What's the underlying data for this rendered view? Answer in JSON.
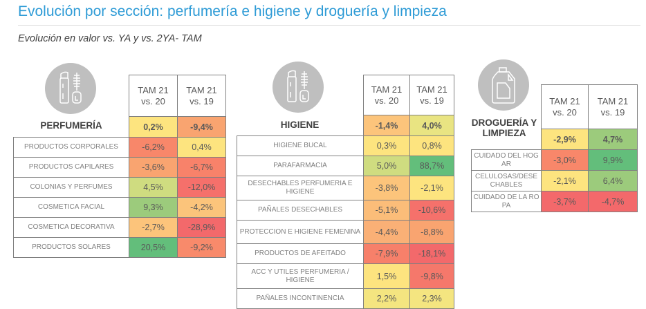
{
  "title": "Evolución por sección: perfumería e higiene y droguería y limpieza",
  "subtitle": "Evolución en valor vs. YA y vs. 2YA- TAM",
  "chart_data": [
    {
      "type": "table",
      "section": "PERFUMERÍA",
      "icon": "cosmetics-icon",
      "columns": [
        "TAM 21 vs. 20",
        "TAM 21 vs. 19"
      ],
      "total": [
        "0,2%",
        "-9,4%"
      ],
      "rows": [
        {
          "label": "PRODUCTOS CORPORALES",
          "values": [
            "-6,2%",
            "0,4%"
          ],
          "num": [
            -6.2,
            0.4
          ]
        },
        {
          "label": "PRODUCTOS CAPILARES",
          "values": [
            "-3,6%",
            "-6,7%"
          ],
          "num": [
            -3.6,
            -6.7
          ]
        },
        {
          "label": "COLONIAS Y PERFUMES",
          "values": [
            "4,5%",
            "-12,0%"
          ],
          "num": [
            4.5,
            -12.0
          ]
        },
        {
          "label": "COSMETICA FACIAL",
          "values": [
            "9,3%",
            "-4,2%"
          ],
          "num": [
            9.3,
            -4.2
          ]
        },
        {
          "label": "COSMETICA DECORATIVA",
          "values": [
            "-2,7%",
            "-28,9%"
          ],
          "num": [
            -2.7,
            -28.9
          ]
        },
        {
          "label": "PRODUCTOS SOLARES",
          "values": [
            "20,5%",
            "-9,2%"
          ],
          "num": [
            20.5,
            -9.2
          ]
        }
      ],
      "colors": {
        "total": [
          "#fde47f",
          "#f9a470"
        ],
        "rows": [
          [
            "#f8876a",
            "#fde47f"
          ],
          [
            "#f9a470",
            "#f8826a"
          ],
          [
            "#cfdc80",
            "#f5706b"
          ],
          [
            "#9ccb7c",
            "#fbc47b"
          ],
          [
            "#fcc47b",
            "#f3696b"
          ],
          [
            "#63be7b",
            "#f88a6b"
          ]
        ]
      }
    },
    {
      "type": "table",
      "section": "HIGIENE",
      "icon": "cosmetics-icon",
      "columns": [
        "TAM 21 vs. 20",
        "TAM 21 vs. 19"
      ],
      "total": [
        "-1,4%",
        "4,0%"
      ],
      "rows": [
        {
          "label": "HIGIENE BUCAL",
          "values": [
            "0,3%",
            "0,8%"
          ],
          "num": [
            0.3,
            0.8
          ]
        },
        {
          "label": "PARAFARMACIA",
          "values": [
            "5,0%",
            "88,7%"
          ],
          "num": [
            5.0,
            88.7
          ]
        },
        {
          "label": "DESECHABLES PERFUMERIA E HIGIENE",
          "values": [
            "-3,8%",
            "-2,1%"
          ],
          "num": [
            -3.8,
            -2.1
          ]
        },
        {
          "label": "PAÑALES DESECHABLES",
          "values": [
            "-5,1%",
            "-10,6%"
          ],
          "num": [
            -5.1,
            -10.6
          ]
        },
        {
          "label": "PROTECCION E HIGIENE FEMENINA",
          "values": [
            "-4,4%",
            "-8,8%"
          ],
          "num": [
            -4.4,
            -8.8
          ]
        },
        {
          "label": "PRODUCTOS DE AFEITADO",
          "values": [
            "-7,9%",
            "-18,1%"
          ],
          "num": [
            -7.9,
            -18.1
          ]
        },
        {
          "label": "ACC Y UTILES PERFUMERIA / HIGIENE",
          "values": [
            "1,5%",
            "-9,8%"
          ],
          "num": [
            1.5,
            -9.8
          ]
        },
        {
          "label": "PAÑALES INCONTINENCIA",
          "values": [
            "2,2%",
            "2,3%"
          ],
          "num": [
            2.2,
            2.3
          ]
        }
      ],
      "colors": {
        "total": [
          "#fcc47b",
          "#e9e482"
        ],
        "rows": [
          [
            "#fde47f",
            "#fde47f"
          ],
          [
            "#cfdc80",
            "#63be7b"
          ],
          [
            "#fcc47b",
            "#fde47f"
          ],
          [
            "#fbbd79",
            "#f5716b"
          ],
          [
            "#fab076",
            "#f9a470"
          ],
          [
            "#f7806a",
            "#f3696b"
          ],
          [
            "#fde47f",
            "#f5786b"
          ],
          [
            "#f4e580",
            "#f4e580"
          ]
        ]
      }
    },
    {
      "type": "table",
      "section": "DROGUERÍA Y LIMPIEZA",
      "icon": "detergent-bottle-icon",
      "columns": [
        "TAM 21 vs. 20",
        "TAM 21 vs. 19"
      ],
      "total": [
        "-2,9%",
        "4,7%"
      ],
      "rows": [
        {
          "label": "CUIDADO DEL HOGAR",
          "values": [
            "-3,0%",
            "9,9%"
          ],
          "num": [
            -3.0,
            9.9
          ]
        },
        {
          "label": "CELULOSAS/DESECHABLES",
          "values": [
            "-2,1%",
            "6,4%"
          ],
          "num": [
            -2.1,
            6.4
          ]
        },
        {
          "label": "CUIDADO DE LA ROPA",
          "values": [
            "-3,7%",
            "-4,7%"
          ],
          "num": [
            -3.7,
            -4.7
          ]
        }
      ],
      "colors": {
        "total": [
          "#fde47f",
          "#9ccb7c"
        ],
        "rows": [
          [
            "#f8876a",
            "#63be7b"
          ],
          [
            "#fde47f",
            "#9ccb7c"
          ],
          [
            "#f3696b",
            "#f3696b"
          ]
        ]
      }
    }
  ]
}
